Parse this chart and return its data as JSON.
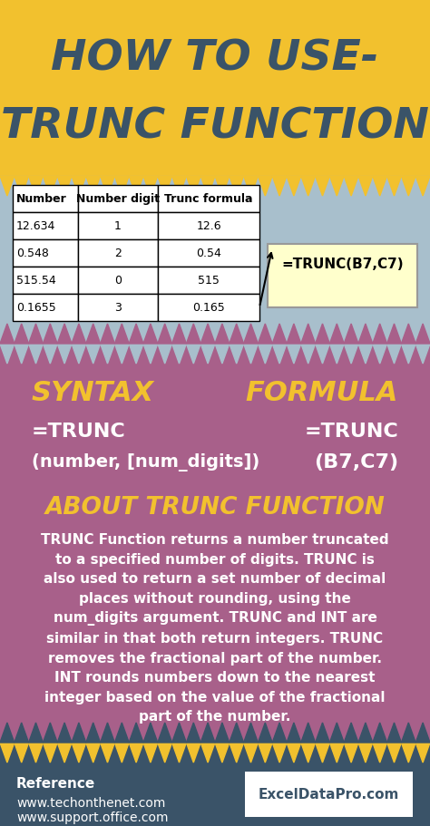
{
  "title_line1": "HOW TO USE-",
  "title_line2": "TRUNC FUNCTION",
  "title_bg": "#F2C12E",
  "title_text_color": "#3A5368",
  "middle_bg": "#A8BFCC",
  "purple_bg": "#A8608A",
  "footer_bg": "#3A5368",
  "table_headers": [
    "Number",
    "Number digit",
    "Trunc formula"
  ],
  "table_rows": [
    [
      "12.634",
      "1",
      "12.6"
    ],
    [
      "0.548",
      "2",
      "0.54"
    ],
    [
      "515.54",
      "0",
      "515"
    ],
    [
      "0.1655",
      "3",
      "0.165"
    ]
  ],
  "formula_box_text": "=TRUNC(B7,C7)",
  "formula_box_bg": "#FFFFCC",
  "syntax_label": "SYNTAX",
  "formula_label": "FORMULA",
  "syntax_line1": "=TRUNC",
  "syntax_line2": "(number, [num_digits])",
  "formula_line1": "=TRUNC",
  "formula_line2": "(B7,C7)",
  "about_title": "ABOUT TRUNC FUNCTION",
  "about_text": "TRUNC Function returns a number truncated\nto a specified number of digits. TRUNC is\nalso used to return a set number of decimal\nplaces without rounding, using the\nnum_digits argument. TRUNC and INT are\nsimilar in that both return integers. TRUNC\nremoves the fractional part of the number.\nINT rounds numbers down to the nearest\ninteger based on the value of the fractional\npart of the number.",
  "ref_label": "Reference",
  "ref_line1": "www.techonthenet.com",
  "ref_line2": "www.support.office.com",
  "brand": "ExcelDataPro.com",
  "yellow_color": "#F2C12E",
  "white": "#FFFFFF",
  "black": "#000000"
}
